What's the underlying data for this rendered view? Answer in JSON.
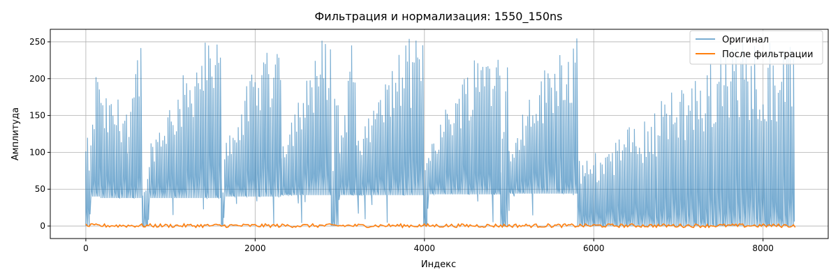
{
  "chart_data": {
    "type": "line",
    "title": "Фильтрация и нормализация: 1550_150ns",
    "xlabel": "Индекс",
    "ylabel": "Амплитуда",
    "xlim": [
      -420,
      8770
    ],
    "ylim": [
      -17,
      267
    ],
    "x_ticks": [
      0,
      2000,
      4000,
      6000,
      8000
    ],
    "x_tick_labels": [
      "0",
      "2000",
      "4000",
      "6000",
      "8000"
    ],
    "y_ticks": [
      0,
      50,
      100,
      150,
      200,
      250
    ],
    "y_tick_labels": [
      "0",
      "50",
      "100",
      "150",
      "200",
      "250"
    ],
    "grid": true,
    "legend_position": "top-right",
    "legend": [
      "Оригинал",
      "После фильтрации"
    ],
    "series": [
      {
        "name": "Оригинал",
        "color": "#1f77b4",
        "alpha": 0.6,
        "x_range": [
          0,
          8380
        ],
        "sample_step": 20,
        "description_values": "sawtooth bursts between baseline and 255",
        "segments": [
          {
            "x": [
              0,
              60
            ],
            "lo": 0,
            "hi": 120
          },
          {
            "x": [
              60,
              180
            ],
            "lo": 40,
            "hi": 255
          },
          {
            "x": [
              180,
              490
            ],
            "lo": 38,
            "hi": 175
          },
          {
            "x": [
              490,
              670
            ],
            "lo": 38,
            "hi": 255
          },
          {
            "x": [
              670,
              750
            ],
            "lo": 0,
            "hi": 70
          },
          {
            "x": [
              750,
              1600
            ],
            "lo": 38,
            "hi": 255
          },
          {
            "x": [
              1600,
              1640
            ],
            "lo": 0,
            "hi": 70
          },
          {
            "x": [
              1640,
              2310
            ],
            "lo": 40,
            "hi": 255
          },
          {
            "x": [
              2310,
              2900
            ],
            "lo": 42,
            "hi": 255
          },
          {
            "x": [
              2900,
              3000
            ],
            "lo": 0,
            "hi": 255
          },
          {
            "x": [
              3000,
              3200
            ],
            "lo": 42,
            "hi": 255
          },
          {
            "x": [
              3200,
              3990
            ],
            "lo": 42,
            "hi": 255
          },
          {
            "x": [
              3990,
              4050
            ],
            "lo": 0,
            "hi": 100
          },
          {
            "x": [
              4050,
              4900
            ],
            "lo": 43,
            "hi": 255
          },
          {
            "x": [
              4900,
              5000
            ],
            "lo": 0,
            "hi": 255
          },
          {
            "x": [
              5000,
              5810
            ],
            "lo": 44,
            "hi": 255
          },
          {
            "x": [
              5810,
              5900
            ],
            "lo": 0,
            "hi": 100
          },
          {
            "x": [
              5900,
              8380
            ],
            "lo": 0,
            "hi": 255
          }
        ]
      },
      {
        "name": "После фильтрации",
        "color": "#ff7f0e",
        "alpha": 1,
        "x_range": [
          0,
          8380
        ],
        "sample_step": 20,
        "level_min": -2,
        "level_max": 3
      }
    ]
  }
}
